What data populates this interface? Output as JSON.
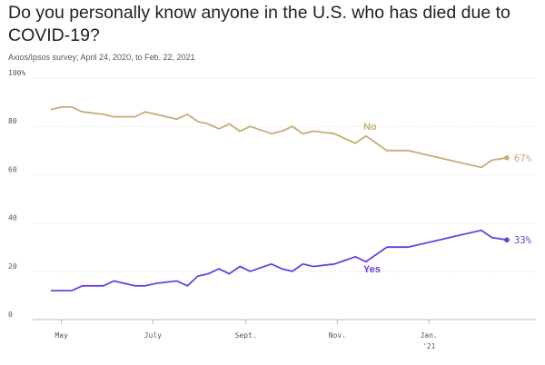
{
  "title": "Do you personally know anyone in the U.S. who has died due to COVID-19?",
  "subtitle": "Axios/Ipsos survey; April 24, 2020, to Feb. 22, 2021",
  "colors": {
    "no": "#c4ae74",
    "yes": "#6b3fe0",
    "grid": "#e6e6e6",
    "axis": "#b8b8b8"
  },
  "chart_data": {
    "type": "line",
    "title": "Do you personally know anyone in the U.S. who has died due to COVID-19?",
    "subtitle": "Axios/Ipsos survey; April 24, 2020, to Feb. 22, 2021",
    "x_unit": "survey date",
    "ylim": [
      0,
      100
    ],
    "y_ticks": [
      0,
      20,
      40,
      60,
      80,
      100
    ],
    "y_tick_labels": [
      "0",
      "20",
      "40",
      "60",
      "80",
      "100%"
    ],
    "x_ticks": [
      {
        "date": "2020-05-01",
        "label": "May"
      },
      {
        "date": "2020-07-01",
        "label": "July"
      },
      {
        "date": "2020-09-01",
        "label": "Sept."
      },
      {
        "date": "2020-11-01",
        "label": "Nov."
      },
      {
        "date": "2021-01-01",
        "label": "Jan.",
        "label2": "'21"
      }
    ],
    "grid": true,
    "series": [
      {
        "name": "No",
        "end_label": "67%",
        "points": [
          [
            "2020-04-24",
            87
          ],
          [
            "2020-05-01",
            88
          ],
          [
            "2020-05-08",
            88
          ],
          [
            "2020-05-15",
            86
          ],
          [
            "2020-05-29",
            85
          ],
          [
            "2020-06-05",
            84
          ],
          [
            "2020-06-19",
            84
          ],
          [
            "2020-06-26",
            86
          ],
          [
            "2020-07-03",
            85
          ],
          [
            "2020-07-17",
            83
          ],
          [
            "2020-07-24",
            85
          ],
          [
            "2020-07-31",
            82
          ],
          [
            "2020-08-07",
            81
          ],
          [
            "2020-08-14",
            79
          ],
          [
            "2020-08-21",
            81
          ],
          [
            "2020-08-28",
            78
          ],
          [
            "2020-09-04",
            80
          ],
          [
            "2020-09-18",
            77
          ],
          [
            "2020-09-25",
            78
          ],
          [
            "2020-10-02",
            80
          ],
          [
            "2020-10-09",
            77
          ],
          [
            "2020-10-16",
            78
          ],
          [
            "2020-10-30",
            77
          ],
          [
            "2020-11-13",
            73
          ],
          [
            "2020-11-20",
            76
          ],
          [
            "2020-12-04",
            70
          ],
          [
            "2020-12-18",
            70
          ],
          [
            "2021-01-08",
            67
          ],
          [
            "2021-01-22",
            65
          ],
          [
            "2021-02-05",
            63
          ],
          [
            "2021-02-12",
            66
          ],
          [
            "2021-02-22",
            67
          ]
        ]
      },
      {
        "name": "Yes",
        "end_label": "33%",
        "points": [
          [
            "2020-04-24",
            12
          ],
          [
            "2020-05-01",
            12
          ],
          [
            "2020-05-08",
            12
          ],
          [
            "2020-05-15",
            14
          ],
          [
            "2020-05-29",
            14
          ],
          [
            "2020-06-05",
            16
          ],
          [
            "2020-06-19",
            14
          ],
          [
            "2020-06-26",
            14
          ],
          [
            "2020-07-03",
            15
          ],
          [
            "2020-07-17",
            16
          ],
          [
            "2020-07-24",
            14
          ],
          [
            "2020-07-31",
            18
          ],
          [
            "2020-08-07",
            19
          ],
          [
            "2020-08-14",
            21
          ],
          [
            "2020-08-21",
            19
          ],
          [
            "2020-08-28",
            22
          ],
          [
            "2020-09-04",
            20
          ],
          [
            "2020-09-18",
            23
          ],
          [
            "2020-09-25",
            21
          ],
          [
            "2020-10-02",
            20
          ],
          [
            "2020-10-09",
            23
          ],
          [
            "2020-10-16",
            22
          ],
          [
            "2020-10-30",
            23
          ],
          [
            "2020-11-13",
            26
          ],
          [
            "2020-11-20",
            24
          ],
          [
            "2020-12-04",
            30
          ],
          [
            "2020-12-18",
            30
          ],
          [
            "2021-01-08",
            33
          ],
          [
            "2021-01-22",
            35
          ],
          [
            "2021-02-05",
            37
          ],
          [
            "2021-02-12",
            34
          ],
          [
            "2021-02-22",
            33
          ]
        ]
      }
    ]
  }
}
